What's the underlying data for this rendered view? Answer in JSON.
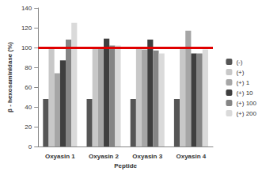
{
  "chart_data": {
    "type": "bar",
    "x_label": "Peptide",
    "y_label": "β - hexosaminidase (%)",
    "categories": [
      "Oxyasin 1",
      "Oxyasin 2",
      "Oxyasin 3",
      "Oxyasin 4"
    ],
    "series": [
      {
        "name": "(-)",
        "color": "#555555",
        "values": [
          48,
          48,
          48,
          48
        ]
      },
      {
        "name": "(+)",
        "color": "#c8c8c8",
        "values": [
          100,
          100,
          100,
          100
        ]
      },
      {
        "name": "(+) 1",
        "color": "#a6a6a6",
        "values": [
          74,
          100,
          98,
          117
        ]
      },
      {
        "name": "(+) 10",
        "color": "#3f3f3f",
        "values": [
          87,
          109,
          108,
          94
        ]
      },
      {
        "name": "(+) 100",
        "color": "#858585",
        "values": [
          108,
          102,
          97,
          94
        ]
      },
      {
        "name": "(+) 200",
        "color": "#dadada",
        "values": [
          125,
          102,
          94,
          98
        ]
      }
    ],
    "reference_line": {
      "value": 100,
      "color": "#e00000"
    },
    "ylim": [
      0,
      140
    ],
    "yticks": [
      0,
      20,
      40,
      60,
      80,
      100,
      120,
      140
    ],
    "grid": false,
    "legend": "right"
  }
}
